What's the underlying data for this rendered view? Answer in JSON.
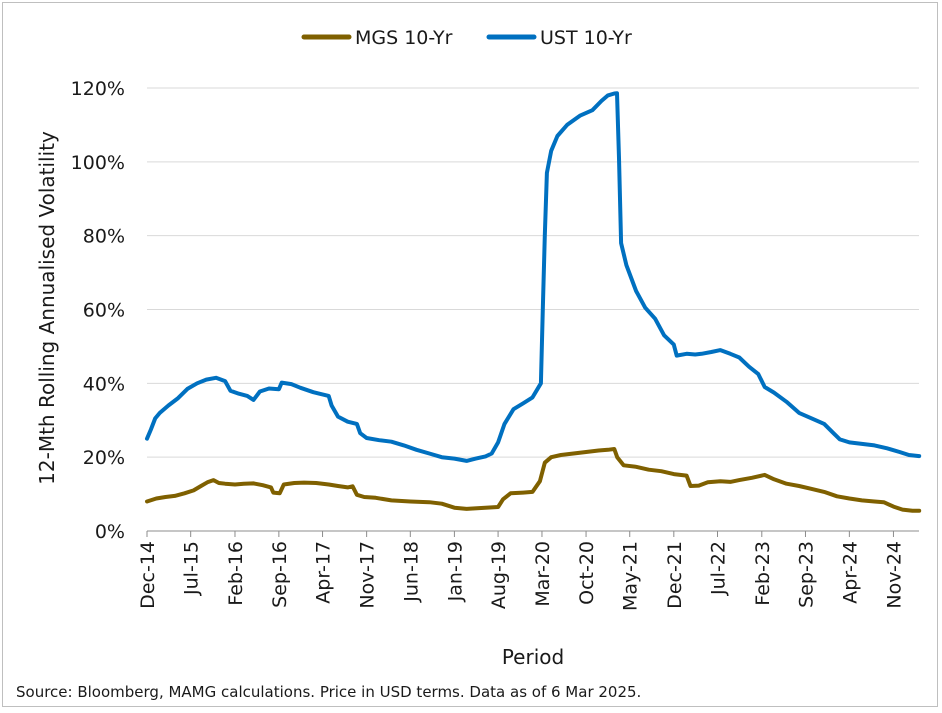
{
  "chart_data": {
    "type": "line",
    "title": "",
    "xlabel": "Period",
    "ylabel": "12-Mth Rolling Annualised Volatility",
    "ylim": [
      0,
      120
    ],
    "y_unit": "%",
    "y_ticks": [
      "0%",
      "20%",
      "40%",
      "60%",
      "80%",
      "100%",
      "120%"
    ],
    "y_tick_values": [
      0,
      20,
      40,
      60,
      80,
      100,
      120
    ],
    "x_tick_labels": [
      "Dec-14",
      "Jul-15",
      "Feb-16",
      "Sep-16",
      "Apr-17",
      "Nov-17",
      "Jun-18",
      "Jan-19",
      "Aug-19",
      "Mar-20",
      "Oct-20",
      "May-21",
      "Dec-21",
      "Jul-22",
      "Feb-23",
      "Sep-23",
      "Apr-24",
      "Nov-24"
    ],
    "x_range": [
      "2014-12",
      "2025-03"
    ],
    "grid": "horizontal",
    "legend_position": "top-center",
    "series": [
      {
        "name": "MGS 10-Yr",
        "color": "#7f6000",
        "points": [
          [
            "2014-12-01",
            8.0
          ],
          [
            "2015-01-15",
            8.8
          ],
          [
            "2015-03-01",
            9.2
          ],
          [
            "2015-04-15",
            9.5
          ],
          [
            "2015-06-01",
            10.2
          ],
          [
            "2015-07-15",
            11.0
          ],
          [
            "2015-08-20",
            12.2
          ],
          [
            "2015-09-20",
            13.2
          ],
          [
            "2015-10-20",
            13.8
          ],
          [
            "2015-11-15",
            13.0
          ],
          [
            "2015-12-15",
            12.8
          ],
          [
            "2016-02-01",
            12.6
          ],
          [
            "2016-03-15",
            12.8
          ],
          [
            "2016-05-01",
            12.9
          ],
          [
            "2016-06-15",
            12.4
          ],
          [
            "2016-07-25",
            11.8
          ],
          [
            "2016-08-05",
            10.4
          ],
          [
            "2016-09-05",
            10.2
          ],
          [
            "2016-09-25",
            12.6
          ],
          [
            "2016-11-15",
            13.0
          ],
          [
            "2017-01-01",
            13.1
          ],
          [
            "2017-03-01",
            13.0
          ],
          [
            "2017-05-01",
            12.6
          ],
          [
            "2017-06-15",
            12.2
          ],
          [
            "2017-08-01",
            11.8
          ],
          [
            "2017-08-25",
            12.1
          ],
          [
            "2017-09-15",
            9.8
          ],
          [
            "2017-10-20",
            9.2
          ],
          [
            "2017-12-15",
            9.0
          ],
          [
            "2018-03-01",
            8.3
          ],
          [
            "2018-06-01",
            8.0
          ],
          [
            "2018-09-01",
            7.8
          ],
          [
            "2018-11-01",
            7.4
          ],
          [
            "2019-01-01",
            6.3
          ],
          [
            "2019-03-01",
            6.0
          ],
          [
            "2019-05-01",
            6.2
          ],
          [
            "2019-07-01",
            6.4
          ],
          [
            "2019-08-01",
            6.5
          ],
          [
            "2019-08-25",
            8.6
          ],
          [
            "2019-10-01",
            10.2
          ],
          [
            "2019-12-01",
            10.4
          ],
          [
            "2020-01-15",
            10.6
          ],
          [
            "2020-02-20",
            13.5
          ],
          [
            "2020-03-15",
            18.5
          ],
          [
            "2020-04-15",
            20.0
          ],
          [
            "2020-06-01",
            20.6
          ],
          [
            "2020-08-01",
            21.0
          ],
          [
            "2020-10-01",
            21.4
          ],
          [
            "2020-12-01",
            21.8
          ],
          [
            "2021-01-15",
            22.0
          ],
          [
            "2021-02-15",
            22.2
          ],
          [
            "2021-03-01",
            20.0
          ],
          [
            "2021-04-01",
            17.8
          ],
          [
            "2021-06-01",
            17.4
          ],
          [
            "2021-08-01",
            16.6
          ],
          [
            "2021-10-01",
            16.2
          ],
          [
            "2021-12-01",
            15.4
          ],
          [
            "2022-02-01",
            15.0
          ],
          [
            "2022-02-20",
            12.2
          ],
          [
            "2022-04-01",
            12.3
          ],
          [
            "2022-05-15",
            13.2
          ],
          [
            "2022-07-15",
            13.5
          ],
          [
            "2022-09-01",
            13.3
          ],
          [
            "2022-10-15",
            13.8
          ],
          [
            "2022-12-15",
            14.4
          ],
          [
            "2023-02-15",
            15.2
          ],
          [
            "2023-04-01",
            14.0
          ],
          [
            "2023-06-01",
            12.8
          ],
          [
            "2023-08-01",
            12.2
          ],
          [
            "2023-10-01",
            11.4
          ],
          [
            "2023-12-01",
            10.6
          ],
          [
            "2024-02-01",
            9.4
          ],
          [
            "2024-04-01",
            8.8
          ],
          [
            "2024-06-01",
            8.3
          ],
          [
            "2024-08-01",
            8.0
          ],
          [
            "2024-09-15",
            7.8
          ],
          [
            "2024-11-01",
            6.6
          ],
          [
            "2024-12-15",
            5.8
          ],
          [
            "2025-02-01",
            5.5
          ],
          [
            "2025-03-06",
            5.5
          ]
        ]
      },
      {
        "name": "UST 10-Yr",
        "color": "#0070c0",
        "points": [
          [
            "2014-12-01",
            25.0
          ],
          [
            "2014-12-20",
            27.5
          ],
          [
            "2015-01-10",
            30.5
          ],
          [
            "2015-02-01",
            32.0
          ],
          [
            "2015-03-15",
            34.0
          ],
          [
            "2015-05-01",
            36.0
          ],
          [
            "2015-06-15",
            38.5
          ],
          [
            "2015-08-01",
            40.0
          ],
          [
            "2015-09-15",
            41.0
          ],
          [
            "2015-11-01",
            41.5
          ],
          [
            "2015-12-15",
            40.6
          ],
          [
            "2016-01-10",
            38.0
          ],
          [
            "2016-02-20",
            37.2
          ],
          [
            "2016-04-01",
            36.6
          ],
          [
            "2016-05-01",
            35.5
          ],
          [
            "2016-06-01",
            37.8
          ],
          [
            "2016-07-15",
            38.6
          ],
          [
            "2016-09-01",
            38.4
          ],
          [
            "2016-09-15",
            40.2
          ],
          [
            "2016-11-01",
            39.8
          ],
          [
            "2016-12-15",
            38.8
          ],
          [
            "2017-02-15",
            37.6
          ],
          [
            "2017-04-01",
            37.0
          ],
          [
            "2017-05-01",
            36.6
          ],
          [
            "2017-05-15",
            34.0
          ],
          [
            "2017-06-15",
            31.0
          ],
          [
            "2017-08-01",
            29.6
          ],
          [
            "2017-09-15",
            29.0
          ],
          [
            "2017-10-01",
            26.5
          ],
          [
            "2017-11-01",
            25.2
          ],
          [
            "2018-01-01",
            24.6
          ],
          [
            "2018-03-01",
            24.2
          ],
          [
            "2018-05-01",
            23.2
          ],
          [
            "2018-07-01",
            22.0
          ],
          [
            "2018-09-01",
            21.0
          ],
          [
            "2018-11-01",
            20.0
          ],
          [
            "2019-01-01",
            19.6
          ],
          [
            "2019-03-01",
            19.0
          ],
          [
            "2019-04-15",
            19.6
          ],
          [
            "2019-06-01",
            20.2
          ],
          [
            "2019-07-01",
            21.0
          ],
          [
            "2019-08-01",
            24.0
          ],
          [
            "2019-09-01",
            29.0
          ],
          [
            "2019-10-15",
            33.0
          ],
          [
            "2019-12-01",
            34.6
          ],
          [
            "2020-01-15",
            36.2
          ],
          [
            "2020-02-25",
            40.0
          ],
          [
            "2020-03-05",
            60.0
          ],
          [
            "2020-03-15",
            80.0
          ],
          [
            "2020-03-25",
            97.0
          ],
          [
            "2020-04-15",
            103.0
          ],
          [
            "2020-05-15",
            107.0
          ],
          [
            "2020-07-01",
            110.0
          ],
          [
            "2020-09-01",
            112.5
          ],
          [
            "2020-11-01",
            114.0
          ],
          [
            "2020-12-15",
            116.5
          ],
          [
            "2021-01-15",
            118.0
          ],
          [
            "2021-02-15",
            118.5
          ],
          [
            "2021-02-28",
            118.6
          ],
          [
            "2021-03-10",
            101.0
          ],
          [
            "2021-03-20",
            78.0
          ],
          [
            "2021-04-15",
            72.0
          ],
          [
            "2021-06-01",
            65.0
          ],
          [
            "2021-07-15",
            60.5
          ],
          [
            "2021-09-01",
            57.5
          ],
          [
            "2021-10-15",
            53.0
          ],
          [
            "2021-12-01",
            50.5
          ],
          [
            "2021-12-15",
            47.5
          ],
          [
            "2022-02-01",
            48.0
          ],
          [
            "2022-03-15",
            47.8
          ],
          [
            "2022-04-15",
            48.0
          ],
          [
            "2022-06-01",
            48.5
          ],
          [
            "2022-07-15",
            49.0
          ],
          [
            "2022-09-01",
            48.0
          ],
          [
            "2022-10-15",
            47.0
          ],
          [
            "2022-12-01",
            44.5
          ],
          [
            "2023-01-15",
            42.5
          ],
          [
            "2023-02-15",
            39.0
          ],
          [
            "2023-04-01",
            37.5
          ],
          [
            "2023-06-01",
            35.0
          ],
          [
            "2023-08-01",
            32.0
          ],
          [
            "2023-10-01",
            30.5
          ],
          [
            "2023-12-01",
            29.0
          ],
          [
            "2024-01-15",
            26.5
          ],
          [
            "2024-02-15",
            24.8
          ],
          [
            "2024-04-01",
            24.0
          ],
          [
            "2024-06-01",
            23.6
          ],
          [
            "2024-08-01",
            23.2
          ],
          [
            "2024-10-01",
            22.4
          ],
          [
            "2024-12-01",
            21.4
          ],
          [
            "2025-01-15",
            20.6
          ],
          [
            "2025-03-06",
            20.3
          ]
        ]
      }
    ]
  },
  "source_note": "Source: Bloomberg, MAMG calculations. Price in USD terms. Data as of 6 Mar 2025."
}
